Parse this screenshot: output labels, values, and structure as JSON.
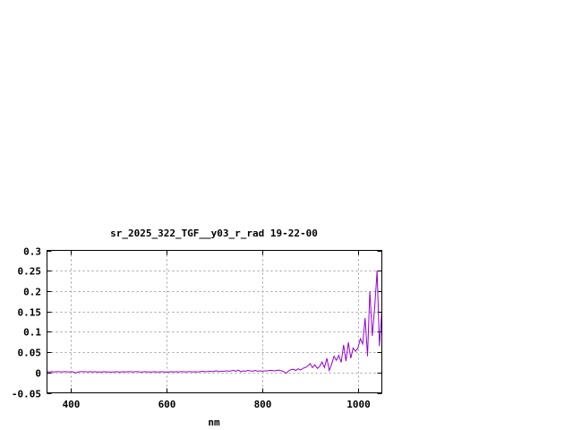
{
  "chart_data": {
    "type": "line",
    "title": "sr_2025_322_TGF__y03_r_rad 19-22-00",
    "xlabel": "nm",
    "ylabel": "",
    "xlim": [
      350,
      1050
    ],
    "ylim": [
      -0.05,
      0.3
    ],
    "xticks": [
      400,
      600,
      800,
      1000
    ],
    "yticks": [
      -0.05,
      0,
      0.05,
      0.1,
      0.15,
      0.2,
      0.25,
      0.3
    ],
    "ytick_labels": [
      "-0.05",
      "0",
      "0.05",
      "0.1",
      "0.15",
      "0.2",
      "0.25",
      "0.3"
    ],
    "grid": true,
    "legend": "none",
    "line_color": "#9400d3",
    "x_start": 350,
    "x_step": 5,
    "values": [
      0.002,
      0.001,
      0.002,
      0.001,
      0.002,
      0.002,
      0.001,
      0.002,
      0.002,
      0.001,
      0.002,
      0.001,
      -0.001,
      0.001,
      0.002,
      0.002,
      0.002,
      0.001,
      0.002,
      0.001,
      0.002,
      0.001,
      0.001,
      0.001,
      0.002,
      0.001,
      0.001,
      0.001,
      0.001,
      0.002,
      0.001,
      0.001,
      0.002,
      0.001,
      0.002,
      0.002,
      0.001,
      0.002,
      0.002,
      0.001,
      0.001,
      0.002,
      0.001,
      0.001,
      0.001,
      0.002,
      0.001,
      0.001,
      0.002,
      0.001,
      0.001,
      0.001,
      0.002,
      0.001,
      0.002,
      0.001,
      0.002,
      0.002,
      0.001,
      0.002,
      0.002,
      0.001,
      0.002,
      0.001,
      0.002,
      0.003,
      0.002,
      0.002,
      0.003,
      0.002,
      0.003,
      0.004,
      0.002,
      0.003,
      0.003,
      0.004,
      0.003,
      0.004,
      0.005,
      0.003,
      0.006,
      0.002,
      0.004,
      0.003,
      0.005,
      0.004,
      0.003,
      0.005,
      0.003,
      0.004,
      0.003,
      0.004,
      0.004,
      0.005,
      0.005,
      0.004,
      0.005,
      0.006,
      0.004,
      0.002,
      -0.002,
      0.004,
      0.007,
      0.008,
      0.005,
      0.009,
      0.006,
      0.01,
      0.012,
      0.016,
      0.022,
      0.012,
      0.019,
      0.01,
      0.015,
      0.026,
      0.012,
      0.035,
      0.005,
      0.02,
      0.04,
      0.03,
      0.042,
      0.025,
      0.068,
      0.028,
      0.074,
      0.035,
      0.06,
      0.052,
      0.06,
      0.083,
      0.07,
      0.134,
      0.04,
      0.2,
      0.09,
      0.16,
      0.25,
      0.065,
      0.15
    ]
  }
}
